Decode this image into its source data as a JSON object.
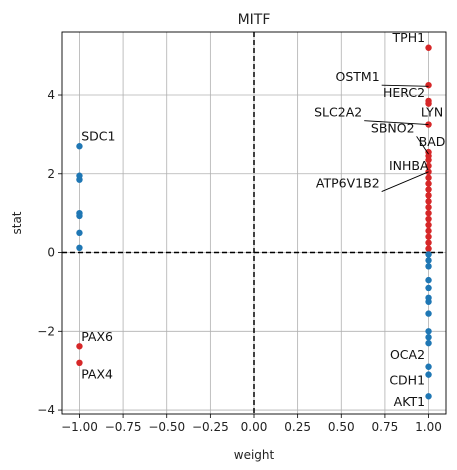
{
  "chart_data": {
    "type": "scatter",
    "title": "MITF",
    "xlabel": "weight",
    "ylabel": "stat",
    "xlim": [
      -1.1,
      1.1
    ],
    "ylim": [
      -4.1,
      5.6
    ],
    "xticks": [
      -1.0,
      -0.75,
      -0.5,
      -0.25,
      0.0,
      0.25,
      0.5,
      0.75,
      1.0
    ],
    "xtick_labels": [
      "−1.00",
      "−0.75",
      "−0.50",
      "−0.25",
      "0.00",
      "0.25",
      "0.50",
      "0.75",
      "1.00"
    ],
    "yticks": [
      -4,
      -2,
      0,
      2,
      4
    ],
    "ytick_labels": [
      "−4",
      "−2",
      "0",
      "2",
      "4"
    ],
    "grid": true,
    "reference_lines": {
      "x": 0,
      "y": 0,
      "style": "dashed",
      "color": "#000000"
    },
    "colors": {
      "positive": "#d62728",
      "negative": "#1f77b4"
    },
    "points": [
      {
        "x": -1.0,
        "y": 2.7,
        "color": "negative"
      },
      {
        "x": -1.0,
        "y": 1.95,
        "color": "negative"
      },
      {
        "x": -1.0,
        "y": 1.85,
        "color": "negative"
      },
      {
        "x": -1.0,
        "y": 1.0,
        "color": "negative"
      },
      {
        "x": -1.0,
        "y": 0.93,
        "color": "negative"
      },
      {
        "x": -1.0,
        "y": 0.5,
        "color": "negative"
      },
      {
        "x": -1.0,
        "y": 0.12,
        "color": "negative"
      },
      {
        "x": -1.0,
        "y": -2.38,
        "color": "positive"
      },
      {
        "x": -1.0,
        "y": -2.8,
        "color": "positive"
      },
      {
        "x": 1.0,
        "y": 5.2,
        "color": "positive"
      },
      {
        "x": 1.0,
        "y": 4.25,
        "color": "positive"
      },
      {
        "x": 1.0,
        "y": 3.85,
        "color": "positive"
      },
      {
        "x": 1.0,
        "y": 3.78,
        "color": "positive"
      },
      {
        "x": 1.0,
        "y": 3.25,
        "color": "positive"
      },
      {
        "x": 1.0,
        "y": 2.55,
        "color": "positive"
      },
      {
        "x": 1.0,
        "y": 2.45,
        "color": "positive"
      },
      {
        "x": 1.0,
        "y": 2.35,
        "color": "positive"
      },
      {
        "x": 1.0,
        "y": 2.2,
        "color": "positive"
      },
      {
        "x": 1.0,
        "y": 2.05,
        "color": "positive"
      },
      {
        "x": 1.0,
        "y": 1.9,
        "color": "positive"
      },
      {
        "x": 1.0,
        "y": 1.75,
        "color": "positive"
      },
      {
        "x": 1.0,
        "y": 1.6,
        "color": "positive"
      },
      {
        "x": 1.0,
        "y": 1.45,
        "color": "positive"
      },
      {
        "x": 1.0,
        "y": 1.3,
        "color": "positive"
      },
      {
        "x": 1.0,
        "y": 1.15,
        "color": "positive"
      },
      {
        "x": 1.0,
        "y": 1.0,
        "color": "positive"
      },
      {
        "x": 1.0,
        "y": 0.85,
        "color": "positive"
      },
      {
        "x": 1.0,
        "y": 0.7,
        "color": "positive"
      },
      {
        "x": 1.0,
        "y": 0.55,
        "color": "positive"
      },
      {
        "x": 1.0,
        "y": 0.4,
        "color": "positive"
      },
      {
        "x": 1.0,
        "y": 0.25,
        "color": "positive"
      },
      {
        "x": 1.0,
        "y": 0.1,
        "color": "positive"
      },
      {
        "x": 1.0,
        "y": -0.05,
        "color": "negative"
      },
      {
        "x": 1.0,
        "y": -0.2,
        "color": "negative"
      },
      {
        "x": 1.0,
        "y": -0.35,
        "color": "negative"
      },
      {
        "x": 1.0,
        "y": -0.7,
        "color": "negative"
      },
      {
        "x": 1.0,
        "y": -0.9,
        "color": "negative"
      },
      {
        "x": 1.0,
        "y": -1.15,
        "color": "negative"
      },
      {
        "x": 1.0,
        "y": -1.25,
        "color": "negative"
      },
      {
        "x": 1.0,
        "y": -1.55,
        "color": "negative"
      },
      {
        "x": 1.0,
        "y": -2.0,
        "color": "negative"
      },
      {
        "x": 1.0,
        "y": -2.15,
        "color": "negative"
      },
      {
        "x": 1.0,
        "y": -2.3,
        "color": "negative"
      },
      {
        "x": 1.0,
        "y": -2.9,
        "color": "negative"
      },
      {
        "x": 1.0,
        "y": -3.1,
        "color": "negative"
      },
      {
        "x": 1.0,
        "y": -3.65,
        "color": "negative"
      }
    ],
    "annotations": [
      {
        "text": "TPH1",
        "x": 0.98,
        "y": 5.35,
        "anchor": "end"
      },
      {
        "text": "OSTM1",
        "x": 0.72,
        "y": 4.35,
        "anchor": "end",
        "arrow_to": [
          1.0,
          4.22
        ]
      },
      {
        "text": "HERC2",
        "x": 0.98,
        "y": 3.95,
        "anchor": "end"
      },
      {
        "text": "LYN",
        "x": 1.02,
        "y": 3.45,
        "anchor": "middle"
      },
      {
        "text": "SLC2A2",
        "x": 0.62,
        "y": 3.45,
        "anchor": "end",
        "arrow_to": [
          1.0,
          3.25
        ]
      },
      {
        "text": "SBNO2",
        "x": 0.92,
        "y": 3.05,
        "anchor": "end",
        "arrow_to": [
          1.0,
          2.5
        ]
      },
      {
        "text": "BAD",
        "x": 1.02,
        "y": 2.7,
        "anchor": "middle"
      },
      {
        "text": "INHBA",
        "x": 1.0,
        "y": 2.1,
        "anchor": "end"
      },
      {
        "text": "ATP6V1B2",
        "x": 0.72,
        "y": 1.65,
        "anchor": "end",
        "arrow_to": [
          1.0,
          2.05
        ]
      },
      {
        "text": "SDC1",
        "x": -0.99,
        "y": 2.85,
        "anchor": "start"
      },
      {
        "text": "PAX6",
        "x": -0.99,
        "y": -2.25,
        "anchor": "start"
      },
      {
        "text": "PAX4",
        "x": -0.99,
        "y": -3.2,
        "anchor": "start"
      },
      {
        "text": "OCA2",
        "x": 0.98,
        "y": -2.7,
        "anchor": "end"
      },
      {
        "text": "CDH1",
        "x": 0.98,
        "y": -3.35,
        "anchor": "end"
      },
      {
        "text": "AKT1",
        "x": 0.98,
        "y": -3.9,
        "anchor": "end"
      }
    ]
  }
}
